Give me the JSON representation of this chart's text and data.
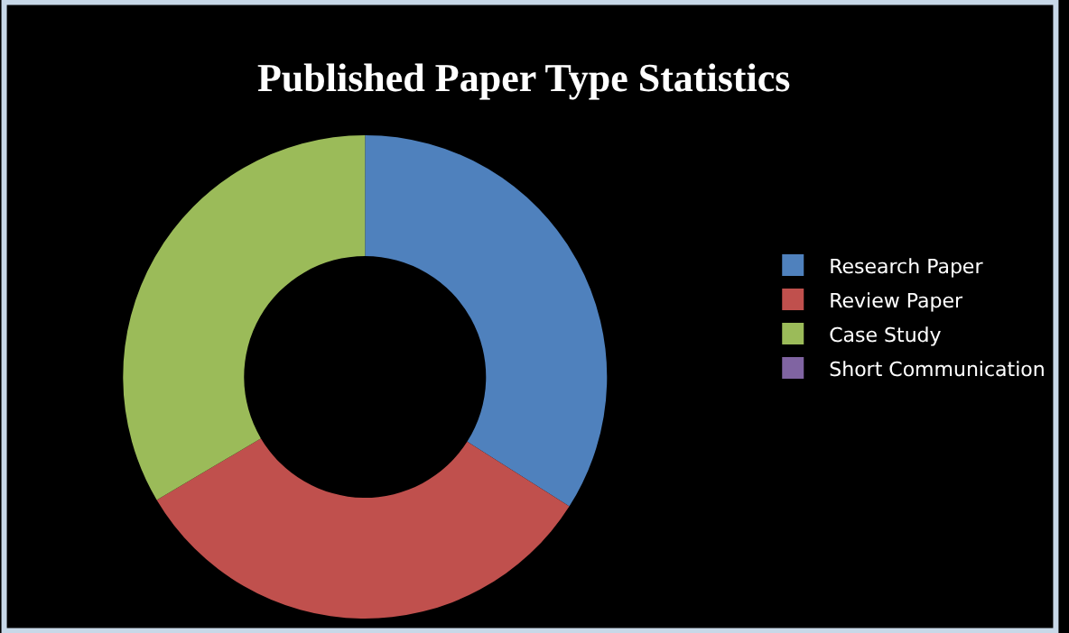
{
  "chart_data": {
    "type": "donut",
    "title": "Published Paper Type Statistics",
    "categories": [
      "Research Paper",
      "Review Paper",
      "Case Study",
      "Short Communication"
    ],
    "values": [
      34,
      32.5,
      33.5,
      0
    ],
    "colors": [
      "#4f81bd",
      "#c0504d",
      "#9bbb59",
      "#8064a2"
    ],
    "legend": "right"
  }
}
